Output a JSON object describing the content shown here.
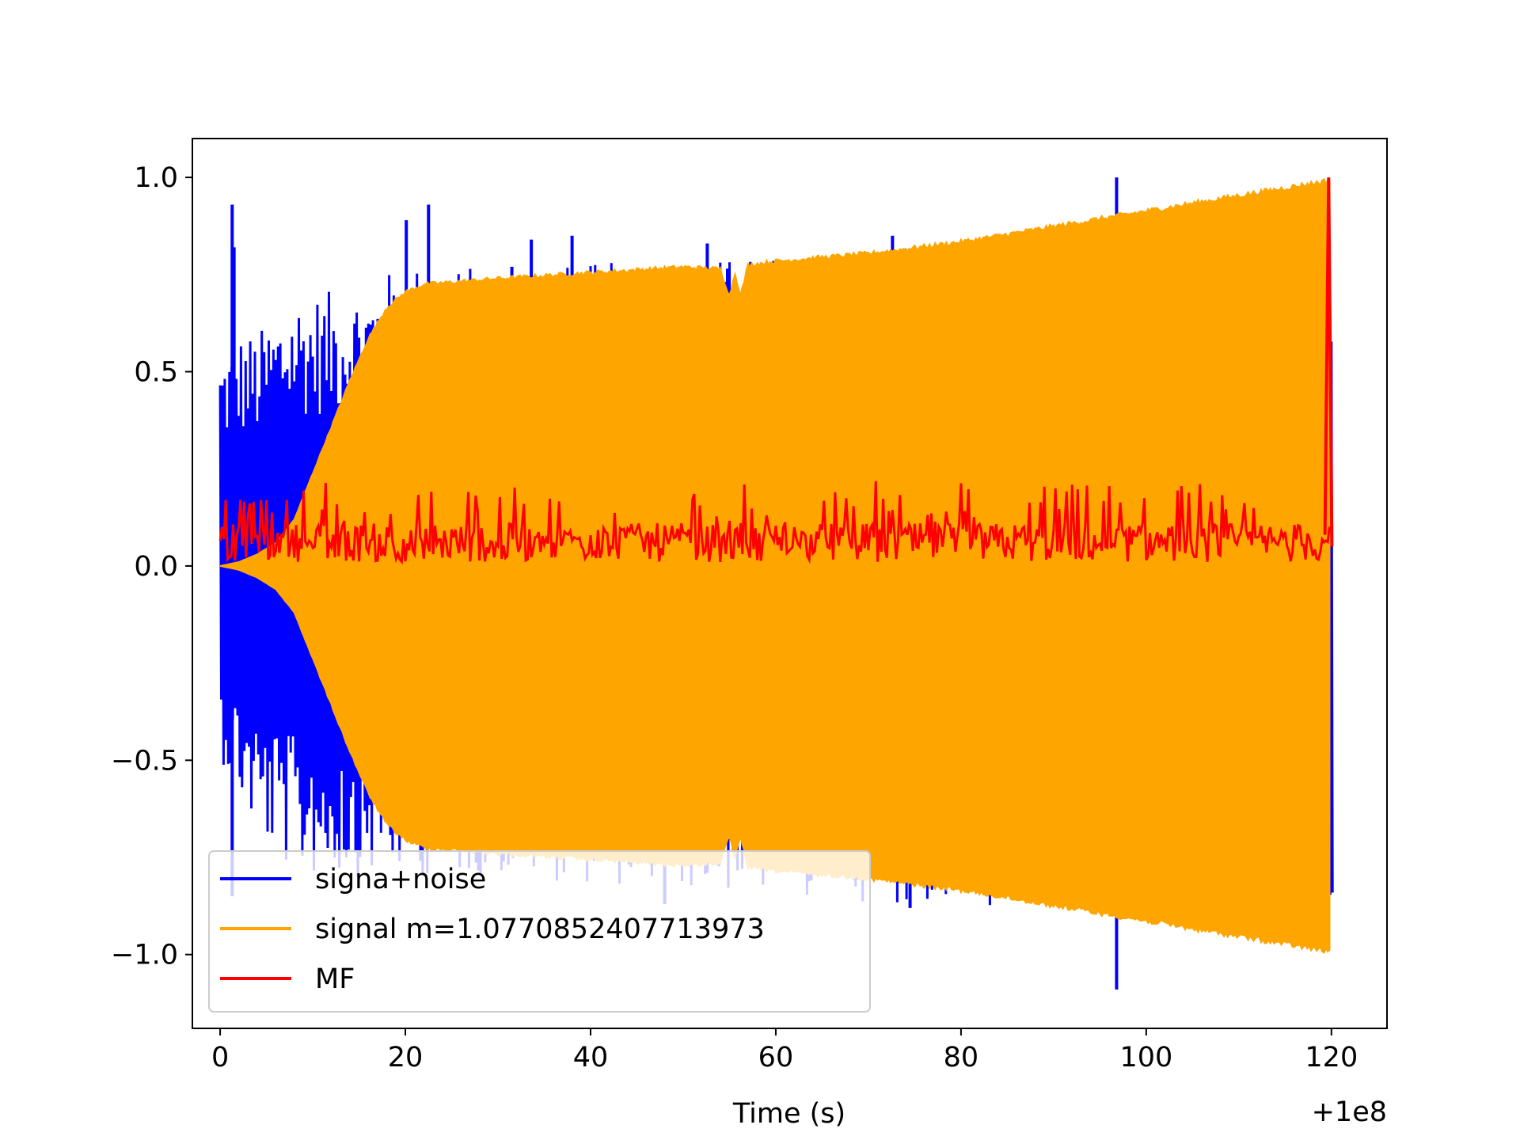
{
  "chart_data": {
    "type": "line",
    "title": "",
    "xlabel": "Time (s)",
    "ylabel": "",
    "x_offset_label": "+1e8",
    "xlim": [
      -3,
      126
    ],
    "ylim": [
      -1.19,
      1.1
    ],
    "x_ticks": [
      0,
      20,
      40,
      60,
      80,
      100,
      120
    ],
    "x_tick_labels": [
      "0",
      "20",
      "40",
      "60",
      "80",
      "100",
      "120"
    ],
    "y_ticks": [
      1.0,
      0.5,
      0.0,
      -0.5,
      -1.0
    ],
    "y_tick_labels": [
      "1.0",
      "0.5",
      "0.0",
      "−0.5",
      "−1.0"
    ],
    "grid": false,
    "legend_position": "lower-left",
    "series": [
      {
        "name": "signa+noise",
        "color": "#0000ff",
        "envelope_x": [
          0,
          2,
          4,
          6,
          8,
          10,
          15,
          20,
          30,
          40,
          60,
          80,
          100,
          120
        ],
        "envelope_upper": [
          0.55,
          0.6,
          0.6,
          0.65,
          0.7,
          0.7,
          0.72,
          0.78,
          0.77,
          0.78,
          0.8,
          0.83,
          0.9,
          1.0
        ],
        "envelope_lower": [
          -0.5,
          -0.6,
          -0.7,
          -0.75,
          -0.8,
          -0.8,
          -0.8,
          -0.8,
          -0.8,
          -0.82,
          -0.85,
          -0.88,
          -0.92,
          -1.0
        ],
        "spikes": [
          {
            "x": 1.3,
            "y": 0.93
          },
          {
            "x": 1.5,
            "y": 0.82
          },
          {
            "x": 20.1,
            "y": 0.89
          },
          {
            "x": 22.5,
            "y": 0.93
          },
          {
            "x": 31.5,
            "y": 0.77
          },
          {
            "x": 33.6,
            "y": 0.84
          },
          {
            "x": 38.0,
            "y": 0.85
          },
          {
            "x": 52.6,
            "y": 0.83
          },
          {
            "x": 72.6,
            "y": 0.85
          },
          {
            "x": 96.8,
            "y": 1.0
          },
          {
            "x": 1.3,
            "y": -0.85
          },
          {
            "x": 48.0,
            "y": -0.87
          },
          {
            "x": 74.5,
            "y": -0.88
          },
          {
            "x": 96.8,
            "y": -1.09
          }
        ]
      },
      {
        "name": "signal m=1.0770852407713973",
        "color": "#ffa500",
        "envelope_x": [
          0,
          2,
          4,
          6,
          8,
          10,
          12,
          14,
          16,
          18,
          20,
          22,
          30,
          40,
          50,
          54,
          55,
          55.6,
          56.2,
          57,
          60,
          70,
          80,
          90,
          100,
          110,
          120
        ],
        "envelope_amplitude": [
          0.0,
          0.01,
          0.03,
          0.06,
          0.12,
          0.24,
          0.36,
          0.48,
          0.59,
          0.67,
          0.71,
          0.73,
          0.745,
          0.76,
          0.775,
          0.77,
          0.7,
          0.76,
          0.7,
          0.78,
          0.79,
          0.81,
          0.84,
          0.88,
          0.92,
          0.96,
          1.0
        ]
      },
      {
        "name": "MF",
        "color": "#ff0000",
        "baseline": 0.06,
        "noise_low": 0.01,
        "noise_high": 0.22,
        "peak": {
          "x": 119.7,
          "y": 1.0
        }
      }
    ]
  }
}
